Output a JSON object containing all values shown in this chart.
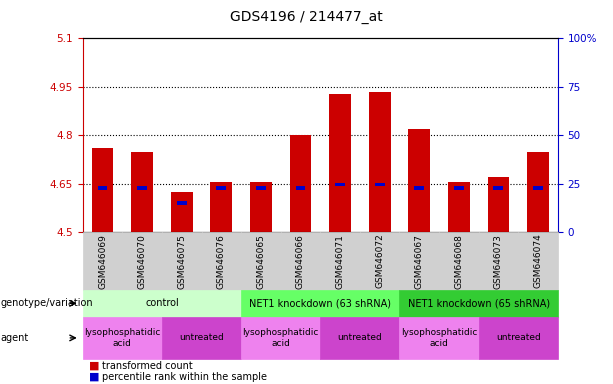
{
  "title": "GDS4196 / 214477_at",
  "samples": [
    "GSM646069",
    "GSM646070",
    "GSM646075",
    "GSM646076",
    "GSM646065",
    "GSM646066",
    "GSM646071",
    "GSM646072",
    "GSM646067",
    "GSM646068",
    "GSM646073",
    "GSM646074"
  ],
  "bar_values": [
    4.76,
    4.75,
    4.625,
    4.655,
    4.655,
    4.8,
    4.928,
    4.935,
    4.82,
    4.655,
    4.67,
    4.75
  ],
  "blue_values": [
    4.638,
    4.636,
    4.592,
    4.638,
    4.638,
    4.638,
    4.648,
    4.648,
    4.638,
    4.636,
    4.636,
    4.638
  ],
  "ylim": [
    4.5,
    5.1
  ],
  "yticks": [
    4.5,
    4.65,
    4.8,
    4.95,
    5.1
  ],
  "right_yticks": [
    0,
    25,
    50,
    75,
    100
  ],
  "right_ytick_labels": [
    "0",
    "25",
    "50",
    "75",
    "100%"
  ],
  "hlines": [
    4.65,
    4.8,
    4.95
  ],
  "bar_color": "#cc0000",
  "blue_color": "#0000cc",
  "bar_width": 0.55,
  "genotype_groups": [
    {
      "label": "control",
      "start": 0,
      "end": 3,
      "color": "#ccffcc"
    },
    {
      "label": "NET1 knockdown (63 shRNA)",
      "start": 4,
      "end": 7,
      "color": "#66ff66"
    },
    {
      "label": "NET1 knockdown (65 shRNA)",
      "start": 8,
      "end": 11,
      "color": "#33cc33"
    }
  ],
  "agent_groups": [
    {
      "label": "lysophosphatidic\nacid",
      "start": 0,
      "end": 1,
      "color": "#ee82ee"
    },
    {
      "label": "untreated",
      "start": 2,
      "end": 3,
      "color": "#cc44cc"
    },
    {
      "label": "lysophosphatidic\nacid",
      "start": 4,
      "end": 5,
      "color": "#ee82ee"
    },
    {
      "label": "untreated",
      "start": 6,
      "end": 7,
      "color": "#cc44cc"
    },
    {
      "label": "lysophosphatidic\nacid",
      "start": 8,
      "end": 9,
      "color": "#ee82ee"
    },
    {
      "label": "untreated",
      "start": 10,
      "end": 11,
      "color": "#cc44cc"
    }
  ],
  "legend_red_label": "transformed count",
  "legend_blue_label": "percentile rank within the sample",
  "left_color": "#cc0000",
  "right_color": "#0000cc",
  "title_fontsize": 10,
  "tick_fontsize": 7.5,
  "genotype_label": "genotype/variation",
  "agent_label": "agent"
}
